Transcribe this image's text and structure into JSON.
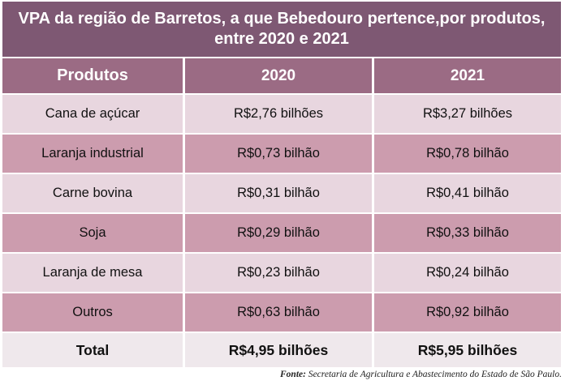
{
  "table": {
    "title": "VPA da região de Barretos, a que Bebedouro pertence,por produtos, entre 2020 e 2021",
    "headers": [
      "Produtos",
      "2020",
      "2021"
    ],
    "rows": [
      [
        "Cana de açúcar",
        "R$2,76 bilhões",
        "R$3,27 bilhões"
      ],
      [
        "Laranja industrial",
        "R$0,73 bilhão",
        "R$0,78 bilhão"
      ],
      [
        "Carne bovina",
        "R$0,31 bilhão",
        "R$0,41 bilhão"
      ],
      [
        "Soja",
        "R$0,29 bilhão",
        "R$0,33 bilhão"
      ],
      [
        "Laranja de mesa",
        "R$0,23 bilhão",
        "R$0,24 bilhão"
      ],
      [
        "Outros",
        "R$0,63 bilhão",
        "R$0,92 bilhão"
      ]
    ],
    "total": [
      "Total",
      "R$4,95 bilhões",
      "R$5,95 bilhões"
    ]
  },
  "chart_data": {
    "type": "table",
    "title": "VPA da região de Barretos, a que Bebedouro pertence,por produtos, entre 2020 e 2021",
    "columns": [
      "Produtos",
      "2020",
      "2021"
    ],
    "categories": [
      "Cana de açúcar",
      "Laranja industrial",
      "Carne bovina",
      "Soja",
      "Laranja de mesa",
      "Outros"
    ],
    "series": [
      {
        "name": "2020",
        "values": [
          2.76,
          0.73,
          0.31,
          0.29,
          0.23,
          0.63
        ]
      },
      {
        "name": "2021",
        "values": [
          3.27,
          0.78,
          0.41,
          0.33,
          0.24,
          0.92
        ]
      }
    ],
    "totals": {
      "2020": 4.95,
      "2021": 5.95
    }
  },
  "footer": {
    "label": "Fonte:",
    "source": "Secretaria de Agricultura e Abastecimento do Estado de São Paulo."
  },
  "colors": {
    "title_bg": "#7e5873",
    "header_bg": "#9b6b84",
    "row_light": "#e8d6df",
    "row_dark": "#cc9cae",
    "total_bg": "#efe8ec"
  }
}
